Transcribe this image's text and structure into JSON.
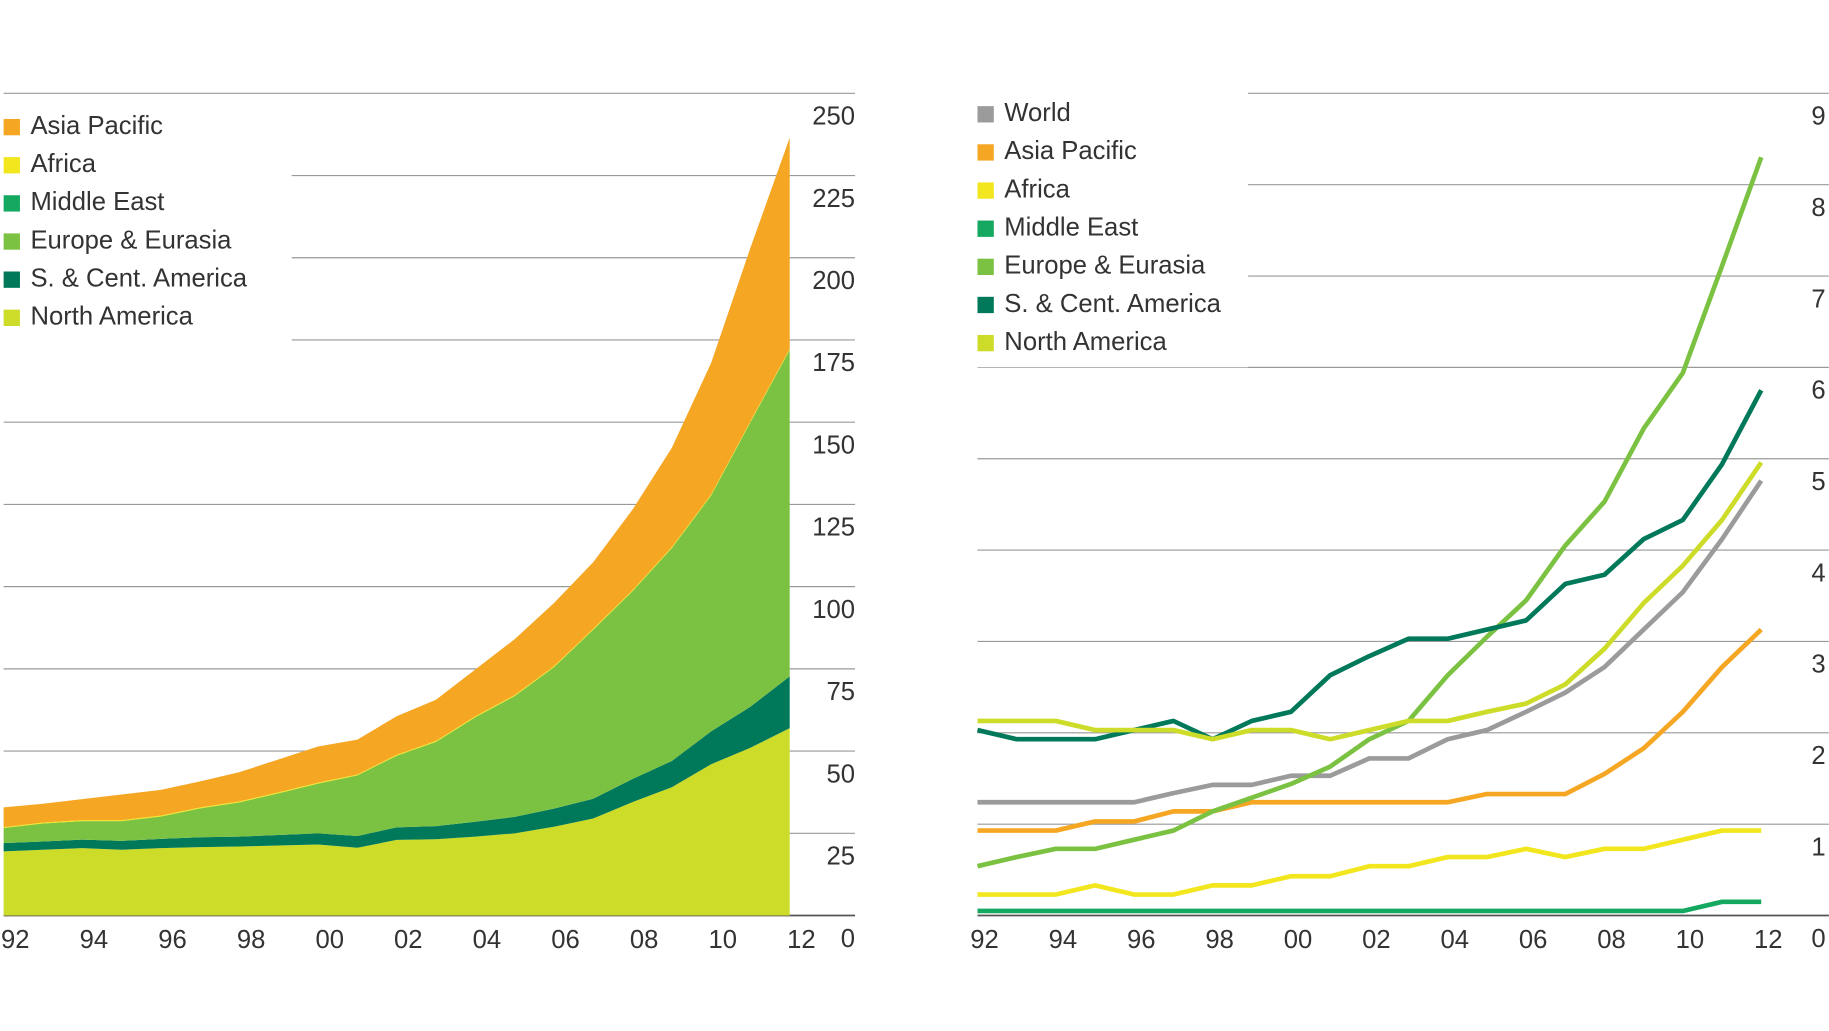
{
  "chart_data": [
    {
      "type": "stacked_area",
      "categories": [
        "92",
        null,
        "94",
        null,
        "96",
        null,
        "98",
        null,
        "00",
        null,
        "02",
        null,
        "04",
        null,
        "06",
        null,
        "08",
        null,
        "10",
        null,
        "12"
      ],
      "ylim": [
        0,
        250
      ],
      "yticks": [
        0,
        25,
        50,
        75,
        100,
        125,
        150,
        175,
        200,
        225,
        250
      ],
      "grid": true,
      "legend": "upper left",
      "series": [
        {
          "name": "North America",
          "color": "#cddc29",
          "values": [
            19.5,
            20,
            20.5,
            20,
            20.5,
            20.8,
            21,
            21.3,
            21.6,
            20.6,
            23,
            23.2,
            24,
            25,
            27,
            29.5,
            34.5,
            39,
            46,
            51,
            57
          ]
        },
        {
          "name": "S. & Cent. America",
          "color": "#00785a",
          "values": [
            2.5,
            2.5,
            2.6,
            2.7,
            2.8,
            3,
            3,
            3.2,
            3.4,
            3.6,
            3.8,
            4,
            4.5,
            5,
            5.5,
            6,
            7,
            8,
            10,
            12.5,
            15.7
          ]
        },
        {
          "name": "Europe & Eurasia",
          "color": "#7cc242",
          "values": [
            4.6,
            5.5,
            5.6,
            6,
            6.8,
            8.8,
            10.4,
            12.7,
            15.1,
            18.4,
            21.8,
            25.6,
            31.8,
            36.7,
            43,
            51.4,
            57.1,
            64.7,
            71.7,
            86.5,
            99.3
          ]
        },
        {
          "name": "Middle East",
          "color": "#14a860",
          "values": [
            0,
            0,
            0,
            0,
            0,
            0,
            0,
            0,
            0,
            0,
            0,
            0,
            0,
            0,
            0,
            0,
            0,
            0,
            0,
            0,
            0
          ]
        },
        {
          "name": "Africa",
          "color": "#f2e61f",
          "values": [
            0.3,
            0.3,
            0.3,
            0.3,
            0.3,
            0.3,
            0.3,
            0.3,
            0.3,
            0.3,
            0.3,
            0.3,
            0.3,
            0.3,
            0.3,
            0.3,
            0.3,
            0.3,
            0.3,
            0.3,
            0.3
          ]
        },
        {
          "name": "Asia Pacific",
          "color": "#f5a623",
          "values": [
            6,
            5.7,
            6.4,
            7.8,
            7.8,
            7.9,
            8.9,
            10,
            11,
            10.6,
            11.7,
            12.5,
            14.2,
            17,
            19.2,
            20.2,
            24.5,
            30.2,
            40,
            52.7,
            64.2
          ]
        }
      ]
    },
    {
      "type": "line",
      "categories": [
        "92",
        null,
        "94",
        null,
        "96",
        null,
        "98",
        null,
        "00",
        null,
        "02",
        null,
        "04",
        null,
        "06",
        null,
        "08",
        null,
        "10",
        null,
        "12"
      ],
      "ylim": [
        0,
        9
      ],
      "yticks": [
        0,
        1,
        2,
        3,
        4,
        5,
        6,
        7,
        8,
        9
      ],
      "grid": true,
      "legend": "upper left",
      "series": [
        {
          "name": "World",
          "color": "#9b9b9b",
          "values": [
            1.24,
            1.24,
            1.24,
            1.24,
            1.24,
            1.34,
            1.43,
            1.43,
            1.53,
            1.53,
            1.72,
            1.72,
            1.93,
            2.03,
            2.23,
            2.44,
            2.72,
            3.13,
            3.54,
            4.12,
            4.76
          ]
        },
        {
          "name": "Asia Pacific",
          "color": "#f5a623",
          "values": [
            0.93,
            0.93,
            0.93,
            1.03,
            1.03,
            1.14,
            1.14,
            1.24,
            1.24,
            1.24,
            1.24,
            1.24,
            1.24,
            1.33,
            1.33,
            1.33,
            1.55,
            1.83,
            2.23,
            2.72,
            3.13
          ]
        },
        {
          "name": "Africa",
          "color": "#f2e61f",
          "values": [
            0.23,
            0.23,
            0.23,
            0.33,
            0.23,
            0.23,
            0.33,
            0.33,
            0.43,
            0.43,
            0.54,
            0.54,
            0.64,
            0.64,
            0.73,
            0.64,
            0.73,
            0.73,
            0.83,
            0.93,
            0.93
          ]
        },
        {
          "name": "Middle East",
          "color": "#14a860",
          "values": [
            0.05,
            0.05,
            0.05,
            0.05,
            0.05,
            0.05,
            0.05,
            0.05,
            0.05,
            0.05,
            0.05,
            0.05,
            0.05,
            0.05,
            0.05,
            0.05,
            0.05,
            0.05,
            0.05,
            0.15,
            0.15
          ]
        },
        {
          "name": "Europe & Eurasia",
          "color": "#7cc242",
          "values": [
            0.54,
            0.64,
            0.73,
            0.73,
            0.83,
            0.93,
            1.14,
            1.29,
            1.44,
            1.63,
            1.93,
            2.13,
            2.63,
            3.05,
            3.45,
            4.05,
            4.53,
            5.33,
            5.94,
            7.11,
            8.3
          ]
        },
        {
          "name": "S. & Cent. America",
          "color": "#00785a",
          "values": [
            2.03,
            1.93,
            1.93,
            1.93,
            2.03,
            2.13,
            1.93,
            2.13,
            2.23,
            2.63,
            2.84,
            3.03,
            3.03,
            3.13,
            3.23,
            3.63,
            3.73,
            4.12,
            4.33,
            4.94,
            5.75
          ]
        },
        {
          "name": "North America",
          "color": "#cddc29",
          "values": [
            2.13,
            2.13,
            2.13,
            2.03,
            2.03,
            2.03,
            1.93,
            2.03,
            2.03,
            1.93,
            2.03,
            2.13,
            2.13,
            2.23,
            2.32,
            2.53,
            2.92,
            3.42,
            3.83,
            4.33,
            4.96
          ]
        }
      ]
    }
  ]
}
